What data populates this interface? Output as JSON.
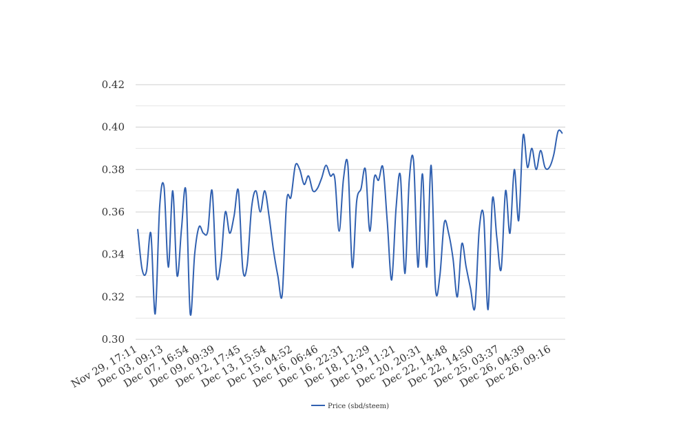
{
  "chart_data": {
    "type": "line",
    "title": "",
    "xlabel": "",
    "ylabel": "",
    "ylim": [
      0.3,
      0.42
    ],
    "y_major_ticks": [
      "0.30",
      "0.32",
      "0.34",
      "0.36",
      "0.38",
      "0.40",
      "0.42"
    ],
    "y_minor_step": 0.01,
    "grid": true,
    "legend_position": "bottom-center",
    "x_tick_labels": [
      "Nov 29, 17:11",
      "Dec 03, 09:13",
      "Dec 07, 16:54",
      "Dec 09, 09:39",
      "Dec 12, 17:45",
      "Dec 13, 15:54",
      "Dec 15, 04:52",
      "Dec 16, 06:46",
      "Dec 16, 22:31",
      "Dec 18, 12:29",
      "Dec 19, 11:21",
      "Dec 20, 20:31",
      "Dec 22, 14:48",
      "Dec 22, 14:50",
      "Dec 25, 03:37",
      "Dec 26, 04:39",
      "Dec 26, 09:16"
    ],
    "series": [
      {
        "name": "Price (sbd/steem)",
        "color": "#3060b0",
        "values": [
          0.352,
          0.333,
          0.332,
          0.35,
          0.312,
          0.362,
          0.372,
          0.334,
          0.37,
          0.33,
          0.352,
          0.37,
          0.312,
          0.34,
          0.353,
          0.35,
          0.351,
          0.37,
          0.33,
          0.337,
          0.36,
          0.35,
          0.358,
          0.37,
          0.333,
          0.335,
          0.362,
          0.37,
          0.36,
          0.37,
          0.358,
          0.342,
          0.33,
          0.321,
          0.365,
          0.367,
          0.382,
          0.38,
          0.373,
          0.377,
          0.37,
          0.371,
          0.376,
          0.382,
          0.377,
          0.376,
          0.351,
          0.376,
          0.382,
          0.334,
          0.365,
          0.371,
          0.38,
          0.351,
          0.376,
          0.375,
          0.381,
          0.355,
          0.328,
          0.362,
          0.377,
          0.331,
          0.375,
          0.384,
          0.334,
          0.378,
          0.334,
          0.382,
          0.324,
          0.33,
          0.355,
          0.35,
          0.338,
          0.32,
          0.345,
          0.334,
          0.324,
          0.315,
          0.352,
          0.358,
          0.314,
          0.366,
          0.348,
          0.333,
          0.37,
          0.35,
          0.38,
          0.356,
          0.396,
          0.381,
          0.39,
          0.38,
          0.389,
          0.381,
          0.381,
          0.387,
          0.398,
          0.397
        ]
      }
    ]
  }
}
